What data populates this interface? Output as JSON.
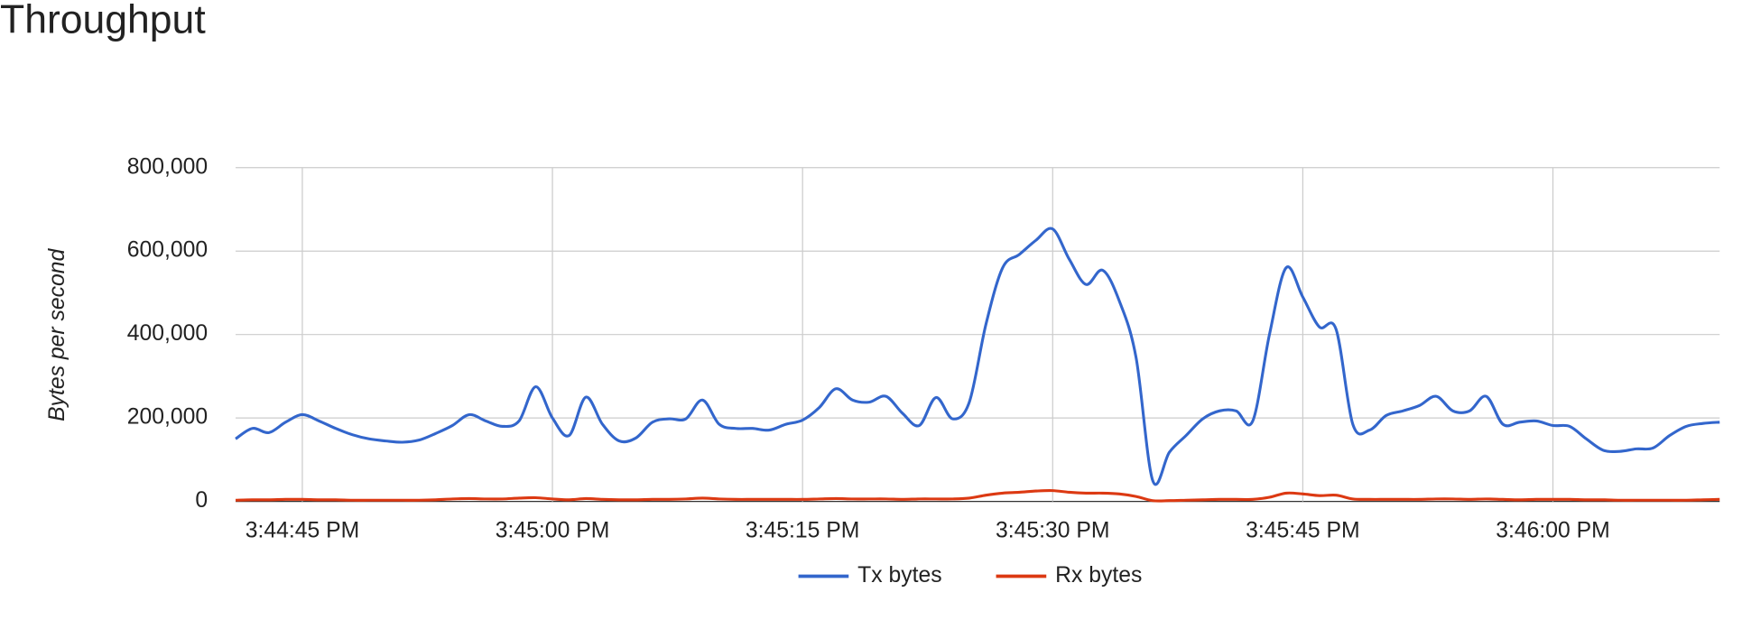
{
  "chart_data": {
    "type": "line",
    "title": "Throughput",
    "ylabel": "Bytes per second",
    "x": [
      "3:44:41 PM",
      "3:44:42 PM",
      "3:44:43 PM",
      "3:44:44 PM",
      "3:44:45 PM",
      "3:44:46 PM",
      "3:44:47 PM",
      "3:44:48 PM",
      "3:44:49 PM",
      "3:44:50 PM",
      "3:44:51 PM",
      "3:44:52 PM",
      "3:44:53 PM",
      "3:44:54 PM",
      "3:44:55 PM",
      "3:44:56 PM",
      "3:44:57 PM",
      "3:44:58 PM",
      "3:44:59 PM",
      "3:45:00 PM",
      "3:45:01 PM",
      "3:45:02 PM",
      "3:45:03 PM",
      "3:45:04 PM",
      "3:45:05 PM",
      "3:45:06 PM",
      "3:45:07 PM",
      "3:45:08 PM",
      "3:45:09 PM",
      "3:45:10 PM",
      "3:45:11 PM",
      "3:45:12 PM",
      "3:45:13 PM",
      "3:45:14 PM",
      "3:45:15 PM",
      "3:45:16 PM",
      "3:45:17 PM",
      "3:45:18 PM",
      "3:45:19 PM",
      "3:45:20 PM",
      "3:45:21 PM",
      "3:45:22 PM",
      "3:45:23 PM",
      "3:45:24 PM",
      "3:45:25 PM",
      "3:45:26 PM",
      "3:45:27 PM",
      "3:45:28 PM",
      "3:45:29 PM",
      "3:45:30 PM",
      "3:45:31 PM",
      "3:45:32 PM",
      "3:45:33 PM",
      "3:45:34 PM",
      "3:45:35 PM",
      "3:45:36 PM",
      "3:45:37 PM",
      "3:45:38 PM",
      "3:45:39 PM",
      "3:45:40 PM",
      "3:45:41 PM",
      "3:45:42 PM",
      "3:45:43 PM",
      "3:45:44 PM",
      "3:45:45 PM",
      "3:45:46 PM",
      "3:45:47 PM",
      "3:45:48 PM",
      "3:45:49 PM",
      "3:45:50 PM",
      "3:45:51 PM",
      "3:45:52 PM",
      "3:45:53 PM",
      "3:45:54 PM",
      "3:45:55 PM",
      "3:45:56 PM",
      "3:45:57 PM",
      "3:45:58 PM",
      "3:45:59 PM",
      "3:46:00 PM",
      "3:46:01 PM",
      "3:46:02 PM",
      "3:46:03 PM",
      "3:46:04 PM",
      "3:46:05 PM",
      "3:46:06 PM",
      "3:46:07 PM",
      "3:46:08 PM",
      "3:46:09 PM",
      "3:46:10 PM"
    ],
    "series": [
      {
        "name": "Tx bytes",
        "color": "#3366cc",
        "values": [
          150000,
          175000,
          165000,
          190000,
          208000,
          193000,
          175000,
          160000,
          150000,
          145000,
          142000,
          147000,
          163000,
          182000,
          208000,
          193000,
          180000,
          193000,
          275000,
          200000,
          158000,
          250000,
          185000,
          145000,
          152000,
          190000,
          198000,
          198000,
          243000,
          185000,
          175000,
          175000,
          171000,
          185000,
          195000,
          225000,
          270000,
          243000,
          238000,
          252000,
          211000,
          182000,
          249000,
          198000,
          238000,
          425000,
          560000,
          592000,
          626000,
          653000,
          580000,
          520000,
          554000,
          480000,
          345000,
          50000,
          118000,
          158000,
          198000,
          217000,
          217000,
          193000,
          400000,
          560000,
          490000,
          418000,
          412000,
          185000,
          171000,
          206000,
          217000,
          230000,
          252000,
          217000,
          217000,
          252000,
          185000,
          190000,
          193000,
          182000,
          180000,
          150000,
          123000,
          120000,
          126000,
          128000,
          158000,
          180000,
          187000,
          190000
        ]
      },
      {
        "name": "Rx bytes",
        "color": "#dc3912",
        "values": [
          3000,
          4000,
          4000,
          5000,
          5000,
          4000,
          4000,
          3000,
          3000,
          3000,
          3000,
          3000,
          4000,
          6000,
          7000,
          6000,
          6000,
          8000,
          9000,
          6000,
          4000,
          7000,
          5000,
          4000,
          4000,
          5000,
          5000,
          6000,
          8000,
          6000,
          5000,
          5000,
          5000,
          5000,
          5000,
          6000,
          7000,
          6000,
          6000,
          6000,
          5000,
          6000,
          6000,
          6000,
          8000,
          15000,
          20000,
          22000,
          25000,
          26000,
          22000,
          20000,
          20000,
          18000,
          12000,
          2000,
          2000,
          3000,
          4000,
          5000,
          5000,
          5000,
          10000,
          20000,
          18000,
          14000,
          15000,
          6000,
          5000,
          5000,
          5000,
          5000,
          6000,
          6000,
          5000,
          6000,
          5000,
          4000,
          5000,
          5000,
          5000,
          4000,
          4000,
          3000,
          3000,
          3000,
          3000,
          3000,
          4000,
          5000
        ]
      }
    ],
    "xlim": [
      "3:44:41 PM",
      "3:46:10 PM"
    ],
    "xticks": [
      "3:44:45 PM",
      "3:45:00 PM",
      "3:45:15 PM",
      "3:45:30 PM",
      "3:45:45 PM",
      "3:46:00 PM"
    ],
    "ylim": [
      0,
      800000
    ],
    "yticks": [
      0,
      {
        "value": 200000,
        "label": "200,000"
      },
      {
        "value": 400000,
        "label": "400,000"
      },
      {
        "value": 600000,
        "label": "600,000"
      },
      {
        "value": 800000,
        "label": "800,000"
      }
    ],
    "grid": true,
    "legend": "bottom"
  }
}
